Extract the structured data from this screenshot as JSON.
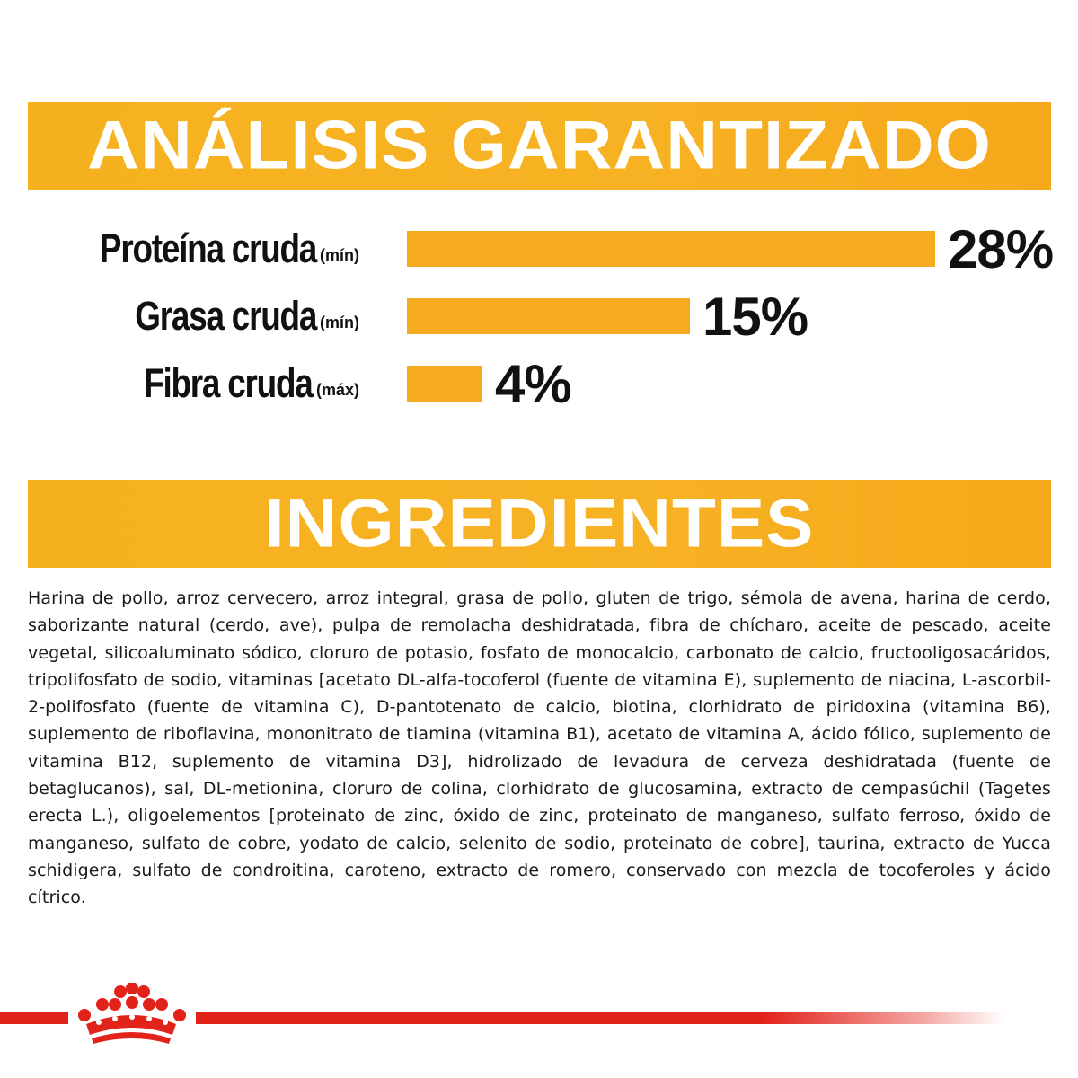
{
  "analysis": {
    "title": "ANÁLISIS GARANTIZADO"
  },
  "ingredients": {
    "title": "INGREDIENTES",
    "text": "Harina de pollo, arroz cervecero, arroz integral, grasa de pollo, gluten de trigo, sémola de avena, harina de cerdo, saborizante natural (cerdo, ave), pulpa de remolacha deshidratada, fibra de chícharo, aceite de pescado, aceite vegetal, silicoaluminato sódico, cloruro de potasio, fosfato de monocalcio, carbonato de calcio, fructooligosacáridos, tripolifosfato de sodio, vitaminas [acetato DL-alfa-tocoferol (fuente de vitamina E), suplemento de niacina, L-ascorbil-2-polifosfato (fuente de vitamina C), D-pantotenato de calcio, biotina, clorhidrato de piridoxina (vitamina B6), suplemento de riboflavina, mononitrato de tiamina (vitamina B1), acetato de vitamina A, ácido fólico, suplemento de vitamina B12, suplemento de vitamina D3], hidrolizado de levadura de cerveza deshidratada (fuente de betaglucanos), sal, DL-metionina, cloruro de colina, clorhidrato de glucosamina, extracto de cempasúchil (Tagetes erecta L.), oligoelementos [proteinato de zinc, óxido de zinc, proteinato de manganeso, sulfato ferroso, óxido de manganeso, sulfato de cobre, yodato de calcio, selenito de sodio, proteinato de cobre], taurina, extracto de Yucca schidigera, sulfato de condroitina, caroteno, extracto de romero, conservado con mezcla de tocoferoles y ácido cítrico."
  },
  "chart_data": {
    "type": "bar",
    "orientation": "horizontal",
    "categories": [
      "Proteína cruda",
      "Grasa cruda",
      "Fibra cruda"
    ],
    "qualifiers": [
      "(mín)",
      "(mín)",
      "(máx)"
    ],
    "values": [
      28,
      15,
      4
    ],
    "value_labels": [
      "28%",
      "15%",
      "4%"
    ],
    "unit": "%",
    "xlim": [
      0,
      28
    ],
    "grid": false,
    "legend": "none",
    "bar_color": "#f6ab1e"
  },
  "colors": {
    "accent": "#f6ab1e",
    "brand_red": "#e2231a",
    "text": "#111111"
  },
  "brand": {
    "logo_icon": "crown-icon"
  }
}
